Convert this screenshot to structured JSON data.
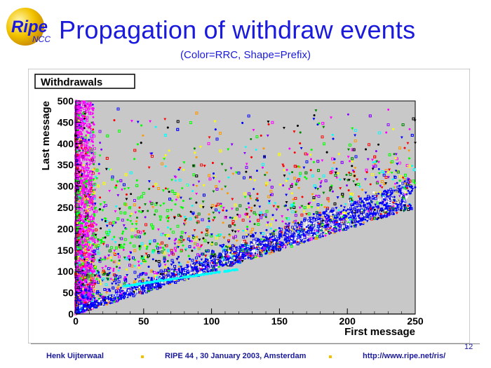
{
  "logo": {
    "text_main": "Ripe",
    "text_sub": "NCC"
  },
  "slide": {
    "title": "Propagation of withdraw events",
    "subtitle": "(Color=RRC, Shape=Prefix)",
    "page_number": "12"
  },
  "footer": {
    "author": "Henk Uijterwaal",
    "event": "RIPE 44 ,  30 January 2003, Amsterdam",
    "url": "http://www.ripe.net/ris/"
  },
  "colors": {
    "title": "#1a1adc",
    "footer_text": "#1a1a99",
    "footer_dot": "#f2c200",
    "plot_background": "#c8c8c8",
    "frame_background": "#ffffff",
    "series_palette": [
      "#ff00ff",
      "#0000ff",
      "#00ff00",
      "#ff0000",
      "#00ffff",
      "#000000",
      "#ffff00",
      "#ff9900",
      "#008800",
      "#8800ff"
    ]
  },
  "chart_data": {
    "type": "scatter",
    "title": "Withdrawals",
    "xlabel": "First message",
    "ylabel": "Last message",
    "xlim": [
      0,
      250
    ],
    "ylim": [
      0,
      500
    ],
    "x_ticks": [
      0,
      50,
      100,
      150,
      200,
      250
    ],
    "y_ticks": [
      0,
      50,
      100,
      150,
      200,
      250,
      300,
      350,
      400,
      450,
      500
    ],
    "grid": false,
    "legend": "none",
    "marker_color_encodes": "RRC",
    "marker_shape_encodes": "Prefix",
    "regions": [
      {
        "description": "dense vertical band",
        "x_range": [
          0,
          10
        ],
        "y_range": [
          0,
          500
        ],
        "dominant_color": "#ff00ff"
      },
      {
        "description": "dense fan of points",
        "x_range": [
          0,
          250
        ],
        "y_lower_bound": "y >= x",
        "y_range": [
          0,
          500
        ]
      },
      {
        "description": "cyan diagonal line",
        "x_range": [
          35,
          120
        ],
        "y_range": [
          65,
          105
        ],
        "dominant_color": "#00ffff"
      }
    ]
  }
}
